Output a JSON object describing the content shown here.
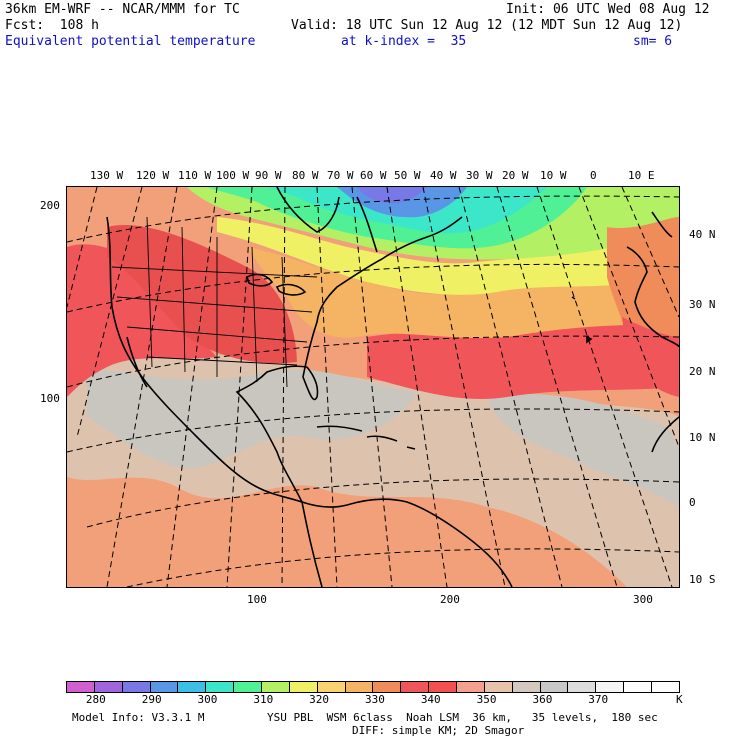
{
  "header": {
    "model_title": "36km EM-WRF -- NCAR/MMM for TC",
    "init": "Init: 06 UTC Wed 08 Aug 12",
    "forecast": "Fcst:  108 h",
    "valid": "Valid: 18 UTC Sun 12 Aug 12 (12 MDT Sun 12 Aug 12)",
    "field": "Equivalent potential temperature",
    "level": "at k-index =  35",
    "smoothing": "sm= 6"
  },
  "map": {
    "region": "North Atlantic, North/Central America, Western Europe and Africa",
    "top_longitudes": [
      "130 W",
      "120 W",
      "110 W",
      "100 W",
      "90 W",
      "80 W",
      "70 W",
      "60 W",
      "50 W",
      "40 W",
      "30 W",
      "20 W",
      "10 W",
      "0",
      "10 E"
    ],
    "right_latitudes": [
      "40 N",
      "30 N",
      "20 N",
      "10 N",
      "0",
      "10 S"
    ],
    "left_grid_ticks": [
      "200",
      "100"
    ],
    "bottom_grid_ticks": [
      "100",
      "200",
      "300"
    ],
    "coastline_color": "#000000",
    "graticule_style": "dashed"
  },
  "colorbar": {
    "colors": [
      "#d25fd2",
      "#a064dc",
      "#7878e6",
      "#5a96e6",
      "#3cbee6",
      "#3ce6c8",
      "#50f096",
      "#b4f064",
      "#f0f064",
      "#fad26e",
      "#f5b464",
      "#f08c5a",
      "#f0555a",
      "#f55050",
      "#f5a08c",
      "#e6c3aa",
      "#d2c8be",
      "#c8c8c8",
      "#dcdcdc",
      "#f5f5f5",
      "#ffffff",
      "#ffffff"
    ],
    "labels": [
      "280",
      "290",
      "300",
      "310",
      "320",
      "330",
      "340",
      "350",
      "360",
      "370"
    ],
    "unit": "K"
  },
  "footer": {
    "model_info": "Model Info: V3.3.1 M",
    "physics_line1": "YSU PBL  WSM 6class  Noah LSM  36 km,   35 levels,  180 sec",
    "physics_line2": "DIFF: simple KM; 2D Smagor"
  }
}
